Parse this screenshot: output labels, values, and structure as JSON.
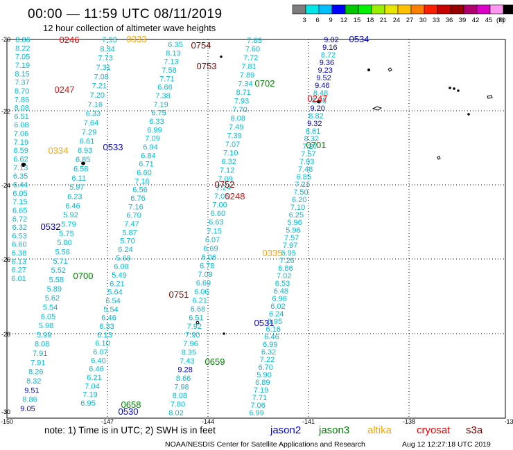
{
  "title": "00:00 — 11:59 UTC 08/11/2019",
  "subtitle": "12 hour collection of altimeter wave heights",
  "colorbar": {
    "ticks": [
      "3",
      "6",
      "9",
      "12",
      "15",
      "18",
      "21",
      "24",
      "27",
      "30",
      "33",
      "36",
      "39",
      "42",
      "45",
      "70",
      "(ft)"
    ],
    "colors": [
      "#7d7d7d",
      "#00e5e5",
      "#00c0ff",
      "#0000ff",
      "#00c800",
      "#00f000",
      "#9bf000",
      "#e6e600",
      "#ffc000",
      "#ff8000",
      "#ff2000",
      "#c80000",
      "#960000",
      "#b0006e",
      "#dc00c8",
      "#ff96f0",
      "#000000"
    ]
  },
  "x_labels": [
    "-150",
    "-147",
    "-144",
    "-141",
    "-138",
    "-13"
  ],
  "y_labels": [
    "-20",
    "-22",
    "-24",
    "-26",
    "-28",
    "-30"
  ],
  "note": "note: 1) Time is in UTC; 2) SWH is in feet",
  "legend": [
    {
      "name": "jason2",
      "color": "#0000ff"
    },
    {
      "name": "jason3",
      "color": "#008000"
    },
    {
      "name": "altika",
      "color": "#ffa500"
    },
    {
      "name": "cryosat",
      "color": "#ff0000"
    },
    {
      "name": "s3a",
      "color": "#800000"
    }
  ],
  "credit": "NOAA/NESDIS Center for Satellite Applications and Research",
  "timestamp": "Aug 12 12:27:18 UTC 2019",
  "pass_times": [
    {
      "text": "0246",
      "color": "#ff0000"
    },
    {
      "text": "0333",
      "color": "#ffa500"
    },
    {
      "text": "0754",
      "color": "#800000"
    },
    {
      "text": "0534",
      "color": "#0000c8"
    },
    {
      "text": "0753",
      "color": "#800000"
    },
    {
      "text": "0247",
      "color": "#ff0000"
    },
    {
      "text": "0702",
      "color": "#008000"
    },
    {
      "text": "0247",
      "color": "#ff0000"
    },
    {
      "text": "0334",
      "color": "#ffa500"
    },
    {
      "text": "0533",
      "color": "#0000c8"
    },
    {
      "text": "0701",
      "color": "#008000"
    },
    {
      "text": "0752",
      "color": "#800000"
    },
    {
      "text": "0248",
      "color": "#ff0000"
    },
    {
      "text": "0532",
      "color": "#0000c8"
    },
    {
      "text": "0335",
      "color": "#ffa500"
    },
    {
      "text": "0700",
      "color": "#008000"
    },
    {
      "text": "0751",
      "color": "#800000"
    },
    {
      "text": "0531",
      "color": "#0000c8"
    },
    {
      "text": "0659",
      "color": "#008000"
    },
    {
      "text": "0658",
      "color": "#008000"
    },
    {
      "text": "0530",
      "color": "#0000c8"
    }
  ],
  "tracks": [
    {
      "name": "cryosat-west",
      "color": "#00bcd4",
      "values": [
        "8.86",
        "8.22",
        "7.05",
        "7.19",
        "8.15",
        "7.37",
        "8.70",
        "7.86",
        "8.08",
        "6.51",
        "6.08",
        "7.06",
        "7.19",
        "6.59",
        "6.62",
        "7.13",
        "6.35",
        "6.44",
        "6.05",
        "7.15",
        "6.65",
        "6.72",
        "6.32",
        "6.53",
        "6.60",
        "6.38",
        "6.13",
        "6.27",
        "6.01"
      ]
    },
    {
      "name": "altika-1",
      "color": "#00bcd4",
      "values": [
        "7.93",
        "8.34",
        "7.73",
        "7.31",
        "7.08",
        "7.21",
        "7.20",
        "7.16",
        "6.33",
        "7.64",
        "7.29",
        "6.61",
        "6.93",
        "6.85",
        "6.58",
        "6.11",
        "5.97",
        "6.23",
        "6.46",
        "5.92",
        "5.79",
        "5.75",
        "5.80",
        "5.56",
        "5.71",
        "5.52",
        "5.58",
        "5.89",
        "5.62",
        "5.54",
        "6.05",
        "5.98",
        "5.99",
        "8.08",
        "7.91",
        "7.91",
        "8.26",
        "8.32",
        "9.51",
        "8.86",
        "9.05"
      ]
    },
    {
      "name": "jason3-long",
      "color": "#00bcd4",
      "values": [
        "6.35",
        "8.13",
        "7.13",
        "7.58",
        "7.71",
        "6.66",
        "7.38",
        "7.19",
        "6.75",
        "6.33",
        "6.99",
        "7.09",
        "6.94",
        "6.84",
        "6.71",
        "6.60",
        "7.16",
        "6.56",
        "6.76",
        "7.16",
        "6.70",
        "7.47",
        "5.87",
        "5.70",
        "6.24",
        "5.68",
        "6.08",
        "5.49",
        "6.21",
        "5.64",
        "6.54",
        "5.54",
        "6.46",
        "6.33",
        "6.13",
        "6.10",
        "6.07",
        "6.40",
        "6.46",
        "6.21",
        "7.04",
        "7.19",
        "6.95"
      ]
    },
    {
      "name": "s3a-1",
      "color": "#00bcd4",
      "values": [
        "7.83",
        "7.60",
        "7.72",
        "7.81",
        "7.89",
        "7.34",
        "8.71",
        "7.93",
        "7.70",
        "8.08",
        "7.49",
        "7.39",
        "7.07",
        "7.10",
        "6.32",
        "7.12",
        "7.09",
        "7.24",
        "7.05",
        "7.00",
        "6.60",
        "6.63",
        "7.15",
        "6.07",
        "6.69",
        "6.06",
        "6.78",
        "7.09",
        "6.69",
        "6.06",
        "6.21",
        "6.68",
        "6.51",
        "7.92",
        "7.90",
        "7.96",
        "8.35",
        "7.43",
        "9.28",
        "8.66",
        "7.98",
        "8.08",
        "7.80",
        "8.02"
      ]
    },
    {
      "name": "jason2-east",
      "color": "#00bcd4",
      "values": [
        "9.02",
        "9.16",
        "8.72",
        "9.36",
        "9.23",
        "9.52",
        "9.46",
        "8.48",
        "8.78",
        "9.20",
        "8.82",
        "9.32",
        "8.61",
        "8.32",
        "7.27",
        "7.57",
        "7.93",
        "7.48",
        "6.85",
        "7.21",
        "7.50",
        "6.20",
        "7.10",
        "6.25",
        "5.96",
        "5.96",
        "7.57",
        "7.97",
        "6.95",
        "7.26",
        "6.86",
        "7.02",
        "6.53",
        "6.48",
        "6.96",
        "6.02",
        "6.24",
        "6.95",
        "6.16",
        "6.46",
        "6.99",
        "6.32",
        "7.22",
        "6.70",
        "5.90",
        "6.89",
        "7.19",
        "7.71",
        "7.06",
        "6.99"
      ]
    }
  ]
}
